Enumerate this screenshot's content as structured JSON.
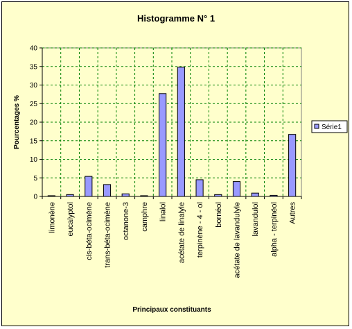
{
  "chart_data": {
    "type": "bar",
    "title": "Histogramme N° 1",
    "xlabel": "Principaux constituants",
    "ylabel": "Pourcentages %",
    "ylim": [
      0,
      40
    ],
    "yticks": [
      0,
      5,
      10,
      15,
      20,
      25,
      30,
      35,
      40
    ],
    "grid": true,
    "legend_position": "right",
    "categories": [
      "limonène",
      "eucalyptol",
      "cis-béta-ocimène",
      "trans-béta-ocimène",
      "octanone-3",
      "camphre",
      "linalol",
      "acétate de linalyle",
      "terpinène - 4 - ol",
      "bornéol",
      "acétate de lavandulyle",
      "lavandulol",
      "alpha - terpinéol",
      "Autres"
    ],
    "series": [
      {
        "name": "Série1",
        "values": [
          0.2,
          0.5,
          5.4,
          3.2,
          0.7,
          0.2,
          27.7,
          34.8,
          4.5,
          0.5,
          4.0,
          0.9,
          0.3,
          16.7
        ]
      }
    ],
    "colors": {
      "bar_fill": "#9999ff",
      "bar_stroke": "#000000",
      "plot_bg": "#ffffcc",
      "grid": "#008000"
    }
  }
}
